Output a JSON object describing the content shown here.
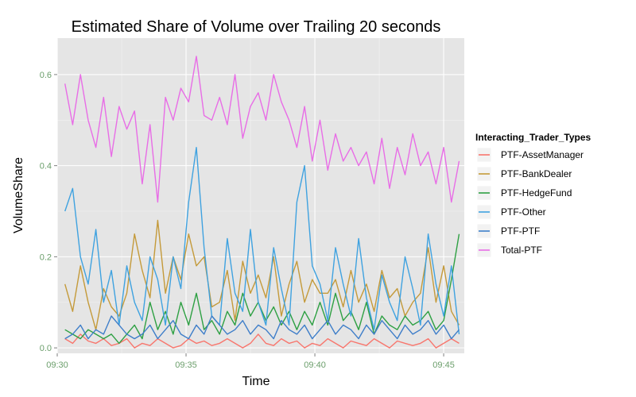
{
  "chart_data": {
    "type": "line",
    "title": "Estimated Share of Volume over Trailing 20 seconds",
    "xlabel": "Time",
    "ylabel": "VolumeShare",
    "x_ticks": [
      "09:30",
      "09:35",
      "09:40",
      "09:45"
    ],
    "y_ticks": [
      "0.0",
      "0.2",
      "0.4",
      "0.6"
    ],
    "xlim": [
      "09:30:00",
      "09:45:48"
    ],
    "ylim": [
      -0.012,
      0.68
    ],
    "grid": true,
    "legend": {
      "title": "Interacting_Trader_Types",
      "placement": "right"
    },
    "x": [
      "09:30:18",
      "09:30:36",
      "09:30:54",
      "09:31:12",
      "09:31:30",
      "09:31:48",
      "09:32:06",
      "09:32:24",
      "09:32:42",
      "09:33:00",
      "09:33:18",
      "09:33:36",
      "09:33:54",
      "09:34:12",
      "09:34:30",
      "09:34:48",
      "09:35:06",
      "09:35:24",
      "09:35:42",
      "09:36:00",
      "09:36:18",
      "09:36:36",
      "09:36:54",
      "09:37:12",
      "09:37:30",
      "09:37:48",
      "09:38:06",
      "09:38:24",
      "09:38:42",
      "09:39:00",
      "09:39:18",
      "09:39:36",
      "09:39:54",
      "09:40:12",
      "09:40:30",
      "09:40:48",
      "09:41:06",
      "09:41:24",
      "09:41:42",
      "09:42:00",
      "09:42:18",
      "09:42:36",
      "09:42:54",
      "09:43:12",
      "09:43:30",
      "09:43:48",
      "09:44:06",
      "09:44:24",
      "09:44:42",
      "09:45:00",
      "09:45:18",
      "09:45:36"
    ],
    "series": [
      {
        "name": "PTF-AssetManager",
        "color": "#f8766d",
        "values": [
          0.02,
          0.01,
          0.03,
          0.015,
          0.01,
          0.02,
          0.005,
          0.01,
          0.02,
          0.0,
          0.01,
          0.005,
          0.02,
          0.01,
          0.0,
          0.005,
          0.02,
          0.01,
          0.015,
          0.005,
          0.01,
          0.02,
          0.01,
          0.0,
          0.01,
          0.03,
          0.01,
          0.005,
          0.02,
          0.01,
          0.015,
          0.0,
          0.01,
          0.005,
          0.02,
          0.01,
          0.0,
          0.015,
          0.01,
          0.005,
          0.02,
          0.01,
          0.0,
          0.015,
          0.01,
          0.005,
          0.01,
          0.02,
          0.0,
          0.01,
          0.02,
          0.01
        ]
      },
      {
        "name": "PTF-BankDealer",
        "color": "#c49a3a",
        "values": [
          0.14,
          0.08,
          0.18,
          0.1,
          0.04,
          0.13,
          0.09,
          0.07,
          0.12,
          0.25,
          0.17,
          0.11,
          0.28,
          0.12,
          0.2,
          0.15,
          0.25,
          0.18,
          0.2,
          0.09,
          0.1,
          0.17,
          0.06,
          0.19,
          0.12,
          0.16,
          0.11,
          0.2,
          0.07,
          0.14,
          0.19,
          0.1,
          0.15,
          0.12,
          0.12,
          0.15,
          0.09,
          0.17,
          0.1,
          0.14,
          0.08,
          0.17,
          0.11,
          0.13,
          0.07,
          0.1,
          0.12,
          0.22,
          0.1,
          0.18,
          0.08,
          0.05
        ]
      },
      {
        "name": "PTF-HedgeFund",
        "color": "#2ea043",
        "values": [
          0.04,
          0.03,
          0.02,
          0.04,
          0.03,
          0.02,
          0.03,
          0.01,
          0.03,
          0.05,
          0.02,
          0.1,
          0.04,
          0.08,
          0.03,
          0.1,
          0.05,
          0.12,
          0.04,
          0.06,
          0.03,
          0.08,
          0.05,
          0.12,
          0.07,
          0.1,
          0.06,
          0.09,
          0.05,
          0.08,
          0.04,
          0.08,
          0.05,
          0.1,
          0.05,
          0.12,
          0.06,
          0.08,
          0.04,
          0.1,
          0.03,
          0.07,
          0.05,
          0.04,
          0.07,
          0.05,
          0.06,
          0.08,
          0.04,
          0.06,
          0.15,
          0.25
        ]
      },
      {
        "name": "PTF-Other",
        "color": "#3fa2e0",
        "values": [
          0.3,
          0.35,
          0.2,
          0.14,
          0.26,
          0.1,
          0.17,
          0.05,
          0.18,
          0.1,
          0.06,
          0.2,
          0.15,
          0.05,
          0.2,
          0.13,
          0.32,
          0.44,
          0.22,
          0.07,
          0.05,
          0.24,
          0.12,
          0.08,
          0.26,
          0.1,
          0.05,
          0.22,
          0.13,
          0.05,
          0.32,
          0.4,
          0.18,
          0.14,
          0.06,
          0.22,
          0.14,
          0.07,
          0.24,
          0.11,
          0.04,
          0.16,
          0.1,
          0.06,
          0.2,
          0.13,
          0.05,
          0.25,
          0.14,
          0.07,
          0.18,
          0.03
        ]
      },
      {
        "name": "PTF-PTF",
        "color": "#3e7ec9",
        "values": [
          0.02,
          0.03,
          0.05,
          0.02,
          0.04,
          0.03,
          0.07,
          0.05,
          0.03,
          0.02,
          0.03,
          0.05,
          0.02,
          0.04,
          0.06,
          0.03,
          0.02,
          0.05,
          0.03,
          0.07,
          0.05,
          0.03,
          0.04,
          0.06,
          0.03,
          0.05,
          0.04,
          0.02,
          0.06,
          0.04,
          0.03,
          0.05,
          0.02,
          0.04,
          0.06,
          0.03,
          0.05,
          0.04,
          0.02,
          0.05,
          0.03,
          0.06,
          0.04,
          0.02,
          0.05,
          0.03,
          0.04,
          0.06,
          0.03,
          0.05,
          0.02,
          0.04
        ]
      },
      {
        "name": "Total-PTF",
        "color": "#e86de6",
        "values": [
          0.58,
          0.49,
          0.6,
          0.5,
          0.44,
          0.55,
          0.42,
          0.53,
          0.48,
          0.52,
          0.36,
          0.49,
          0.32,
          0.55,
          0.5,
          0.57,
          0.54,
          0.64,
          0.51,
          0.5,
          0.55,
          0.49,
          0.6,
          0.46,
          0.53,
          0.56,
          0.5,
          0.6,
          0.54,
          0.5,
          0.44,
          0.53,
          0.41,
          0.5,
          0.39,
          0.47,
          0.41,
          0.44,
          0.4,
          0.43,
          0.36,
          0.46,
          0.35,
          0.44,
          0.38,
          0.47,
          0.4,
          0.43,
          0.36,
          0.44,
          0.32,
          0.41
        ]
      }
    ]
  }
}
